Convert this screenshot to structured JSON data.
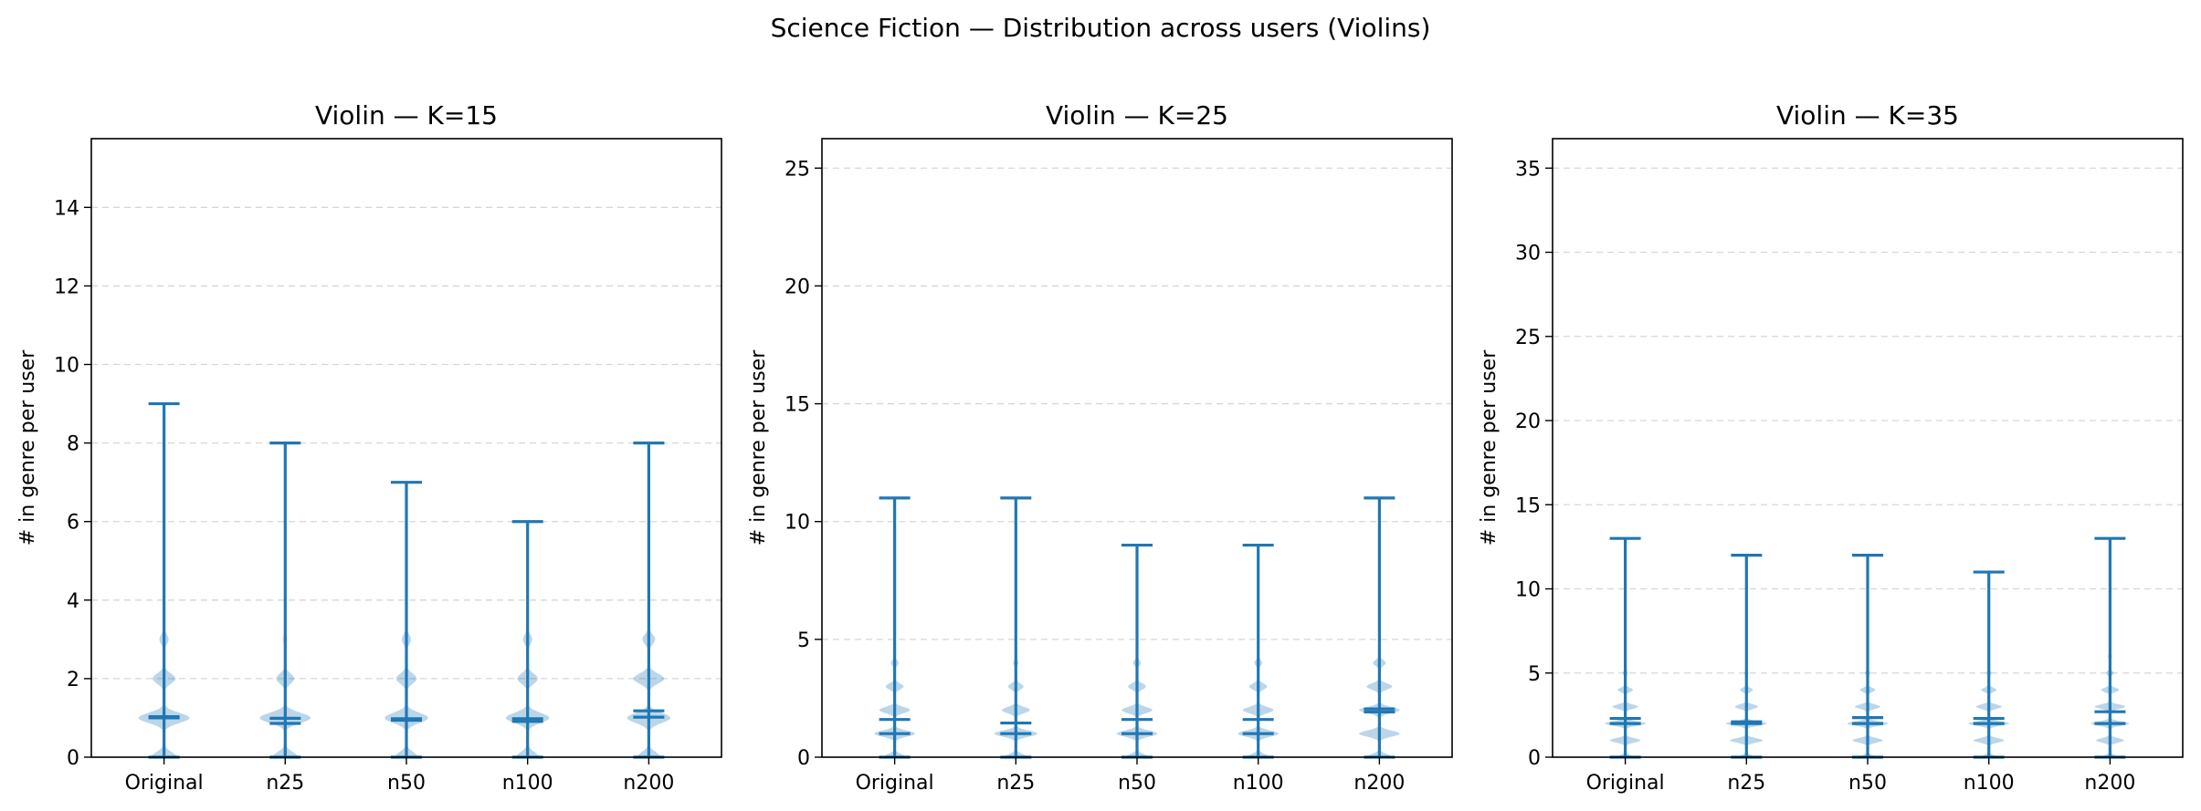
{
  "figure": {
    "title": "Science Fiction — Distribution across users (Violins)"
  },
  "colors": {
    "line": "#1f77b4",
    "violin_fill": "#1f77b4",
    "grid": "#cccccc"
  },
  "chart_data": [
    {
      "type": "violin",
      "title": "Violin — K=15",
      "xlabel": "",
      "ylabel": "# in genre per user",
      "categories": [
        "Original",
        "n25",
        "n50",
        "n100",
        "n200"
      ],
      "ylim": [
        0,
        15.75
      ],
      "yticks": [
        0,
        2,
        4,
        6,
        8,
        10,
        12,
        14
      ],
      "grid": true,
      "series": [
        {
          "max": 9,
          "mean": 1.03,
          "median": 1,
          "density": [
            [
              0,
              0.5
            ],
            [
              1,
              1.0
            ],
            [
              2,
              0.45
            ],
            [
              3,
              0.18
            ]
          ]
        },
        {
          "max": 8,
          "mean": 0.99,
          "median": 0.86,
          "density": [
            [
              0,
              0.5
            ],
            [
              1,
              1.0
            ],
            [
              2,
              0.35
            ],
            [
              3,
              0.08
            ]
          ]
        },
        {
          "max": 7,
          "mean": 0.98,
          "median": 0.94,
          "density": [
            [
              0,
              0.45
            ],
            [
              1,
              0.85
            ],
            [
              2,
              0.4
            ],
            [
              3,
              0.18
            ]
          ]
        },
        {
          "max": 6,
          "mean": 0.98,
          "median": 0.91,
          "density": [
            [
              0,
              0.45
            ],
            [
              1,
              0.85
            ],
            [
              2,
              0.4
            ],
            [
              3,
              0.18
            ]
          ]
        },
        {
          "max": 8,
          "mean": 1.18,
          "median": 1.02,
          "density": [
            [
              0,
              0.45
            ],
            [
              1,
              0.85
            ],
            [
              2,
              0.6
            ],
            [
              3,
              0.25
            ]
          ]
        }
      ]
    },
    {
      "type": "violin",
      "title": "Violin — K=25",
      "xlabel": "",
      "ylabel": "# in genre per user",
      "categories": [
        "Original",
        "n25",
        "n50",
        "n100",
        "n200"
      ],
      "ylim": [
        0,
        26.25
      ],
      "yticks": [
        0,
        5,
        10,
        15,
        20,
        25
      ],
      "grid": true,
      "series": [
        {
          "max": 11,
          "mean": 1.6,
          "median": 1,
          "density": [
            [
              0,
              0.45
            ],
            [
              1,
              0.8
            ],
            [
              2,
              0.6
            ],
            [
              3,
              0.35
            ],
            [
              4,
              0.15
            ]
          ]
        },
        {
          "max": 11,
          "mean": 1.45,
          "median": 1,
          "density": [
            [
              0,
              0.45
            ],
            [
              1,
              0.85
            ],
            [
              2,
              0.55
            ],
            [
              3,
              0.3
            ],
            [
              4,
              0.1
            ]
          ]
        },
        {
          "max": 9,
          "mean": 1.6,
          "median": 1,
          "density": [
            [
              0,
              0.45
            ],
            [
              1,
              0.8
            ],
            [
              2,
              0.6
            ],
            [
              3,
              0.35
            ],
            [
              4,
              0.15
            ]
          ]
        },
        {
          "max": 9,
          "mean": 1.6,
          "median": 1,
          "density": [
            [
              0,
              0.45
            ],
            [
              1,
              0.8
            ],
            [
              2,
              0.6
            ],
            [
              3,
              0.35
            ],
            [
              4,
              0.15
            ]
          ]
        },
        {
          "max": 11,
          "mean": 2.05,
          "median": 1.92,
          "density": [
            [
              0,
              0.5
            ],
            [
              1,
              0.8
            ],
            [
              2,
              0.8
            ],
            [
              3,
              0.5
            ],
            [
              4,
              0.25
            ]
          ]
        }
      ]
    },
    {
      "type": "violin",
      "title": "Violin — K=35",
      "xlabel": "",
      "ylabel": "# in genre per user",
      "categories": [
        "Original",
        "n25",
        "n50",
        "n100",
        "n200"
      ],
      "ylim": [
        0,
        36.75
      ],
      "yticks": [
        0,
        5,
        10,
        15,
        20,
        25,
        30,
        35
      ],
      "grid": true,
      "series": [
        {
          "max": 13,
          "mean": 2.3,
          "median": 2,
          "density": [
            [
              0,
              0.3
            ],
            [
              1,
              0.6
            ],
            [
              2,
              0.8
            ],
            [
              3,
              0.5
            ],
            [
              4,
              0.3
            ],
            [
              5,
              0.1
            ]
          ]
        },
        {
          "max": 12,
          "mean": 2.1,
          "median": 2,
          "density": [
            [
              0,
              0.3
            ],
            [
              1,
              0.65
            ],
            [
              2,
              0.8
            ],
            [
              3,
              0.45
            ],
            [
              4,
              0.25
            ],
            [
              5,
              0.08
            ]
          ]
        },
        {
          "max": 12,
          "mean": 2.35,
          "median": 2,
          "density": [
            [
              0,
              0.3
            ],
            [
              1,
              0.6
            ],
            [
              2,
              0.8
            ],
            [
              3,
              0.5
            ],
            [
              4,
              0.3
            ],
            [
              5,
              0.1
            ]
          ]
        },
        {
          "max": 11,
          "mean": 2.3,
          "median": 2,
          "density": [
            [
              0,
              0.3
            ],
            [
              1,
              0.6
            ],
            [
              2,
              0.8
            ],
            [
              3,
              0.5
            ],
            [
              4,
              0.3
            ],
            [
              5,
              0.1
            ]
          ]
        },
        {
          "max": 13,
          "mean": 2.7,
          "median": 2,
          "density": [
            [
              0,
              0.3
            ],
            [
              1,
              0.55
            ],
            [
              2,
              0.75
            ],
            [
              3,
              0.6
            ],
            [
              4,
              0.35
            ],
            [
              5,
              0.15
            ],
            [
              6,
              0.08
            ]
          ]
        }
      ]
    }
  ]
}
